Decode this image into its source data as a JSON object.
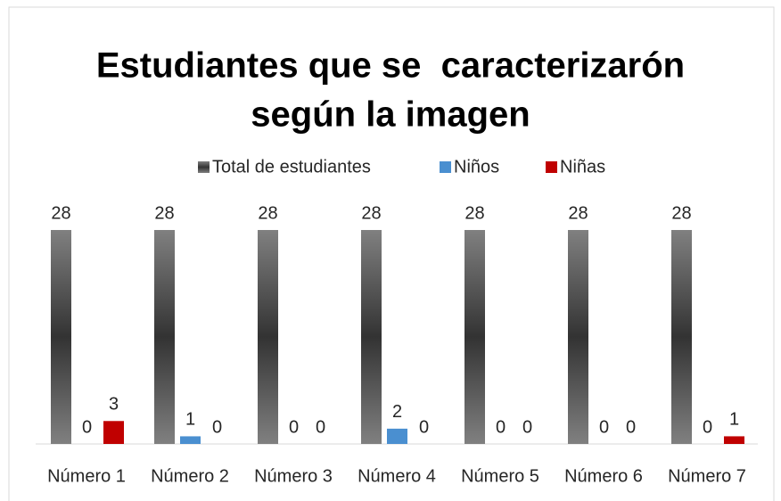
{
  "chart_data": {
    "type": "bar",
    "title": [
      "Estudiantes que se  caracterizarón",
      "según la imagen"
    ],
    "categories": [
      "Número 1",
      "Número 2",
      "Número 3",
      "Número 4",
      "Número 5",
      "Número 6",
      "Número 7"
    ],
    "series": [
      {
        "name": "Total de estudiantes",
        "color": "#595959",
        "values": [
          28,
          28,
          28,
          28,
          28,
          28,
          28
        ]
      },
      {
        "name": "Niños",
        "color": "#4a8fd0",
        "values": [
          0,
          1,
          0,
          2,
          0,
          0,
          0
        ]
      },
      {
        "name": "Niñas",
        "color": "#c00000",
        "values": [
          3,
          0,
          0,
          0,
          0,
          0,
          1
        ]
      }
    ],
    "legend": "top"
  }
}
